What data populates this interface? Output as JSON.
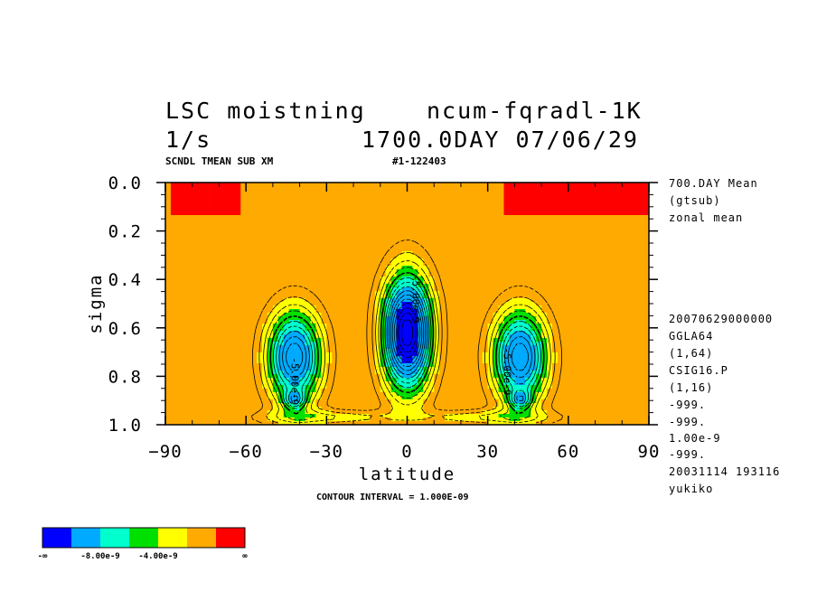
{
  "header": {
    "title_left": "LSC moistning",
    "title_right": "ncum-fqradl-1K",
    "units": "1/s",
    "timestamp": "1700.0DAY 07/06/29",
    "subtitle_left": "SCNDL TMEAN SUB XM",
    "subtitle_right": "#1-122403"
  },
  "side_info": {
    "top": [
      "700.DAY Mean",
      "(gtsub)",
      "zonal mean"
    ],
    "bottom": [
      "20070629000000",
      "GGLA64",
      "(1,64)",
      "CSIG16.P",
      "(1,16)",
      "-999.",
      "-999.",
      "1.00e-9",
      "-999.",
      "20031114 193116",
      "yukiko"
    ]
  },
  "contour_interval": "CONTOUR INTERVAL = 1.000E-09",
  "chart_data": {
    "type": "heatmap",
    "xlabel": "latitude",
    "ylabel": "sigma",
    "xlim": [
      -90,
      90
    ],
    "ylim": [
      1.0,
      0.0
    ],
    "x_ticks": [
      -90,
      -60,
      -30,
      0,
      30,
      60,
      90
    ],
    "x_tick_labels": [
      "−90",
      "−60",
      "−30",
      "0",
      "30",
      "60",
      "90"
    ],
    "y_ticks": [
      0.0,
      0.2,
      0.4,
      0.6,
      0.8,
      1.0
    ],
    "y_tick_labels": [
      "0.0",
      "0.2",
      "0.4",
      "0.6",
      "0.8",
      "1.0"
    ],
    "contour_labels": [
      {
        "text": "-5.00e-9",
        "lat": -43,
        "sigma": 0.82
      },
      {
        "text": "-5.00e-9",
        "lat": 2,
        "sigma": 0.48
      },
      {
        "text": "-5.00e-9",
        "lat": 36,
        "sigma": 0.78
      }
    ],
    "legend": {
      "colors": [
        "#0000ff",
        "#00aaff",
        "#00ffcc",
        "#00e000",
        "#ffff00",
        "#ffaa00",
        "#ff0000"
      ],
      "labels": [
        "-∞",
        "-8.00e-9",
        "-4.00e-9",
        "∞"
      ]
    },
    "cores": [
      {
        "lat": -42,
        "sigma": 0.72,
        "min": -1.1e-08
      },
      {
        "lat": 0,
        "sigma": 0.62,
        "min": -1.6e-08
      },
      {
        "lat": 42,
        "sigma": 0.72,
        "min": -1.1e-08
      }
    ]
  }
}
